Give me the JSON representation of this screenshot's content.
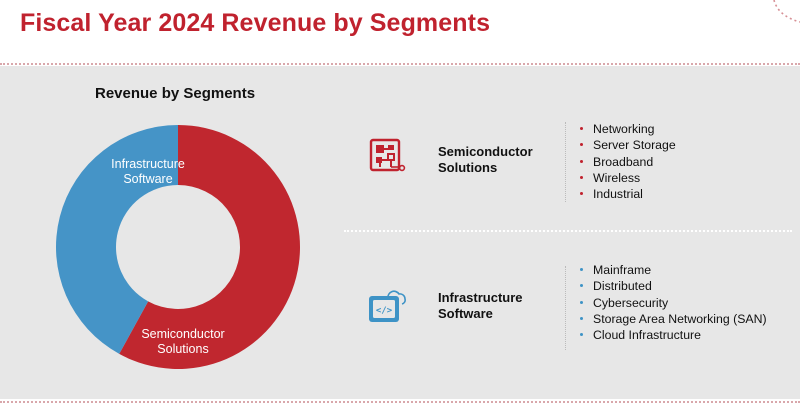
{
  "header": {
    "title": "Fiscal Year 2024 Revenue by Segments"
  },
  "colors": {
    "brand_red": "#c0222e",
    "segment_red": "#c0272f",
    "segment_blue": "#4594c7",
    "panel_bg": "#e7e7e7"
  },
  "chart_data": {
    "type": "pie",
    "variant": "donut",
    "title": "Revenue by Segments",
    "categories": [
      "Semiconductor Solutions",
      "Infrastructure Software"
    ],
    "labels": [
      [
        "Semiconductor",
        "Solutions"
      ],
      [
        "Infrastructure",
        "Software"
      ]
    ],
    "values": [
      58,
      42
    ],
    "unit": "% of revenue (estimated from slice size)",
    "colors": [
      "#c0272f",
      "#4594c7"
    ]
  },
  "segments": [
    {
      "name_lines": [
        "Semiconductor",
        "Solutions"
      ],
      "icon": "circuit-board-icon",
      "items": [
        "Networking",
        "Server Storage",
        "Broadband",
        "Wireless",
        "Industrial"
      ]
    },
    {
      "name_lines": [
        "Infrastructure",
        "Software"
      ],
      "icon": "cloud-code-icon",
      "items": [
        "Mainframe",
        "Distributed",
        "Cybersecurity",
        "Storage Area Networking (SAN)",
        "Cloud Infrastructure"
      ]
    }
  ]
}
